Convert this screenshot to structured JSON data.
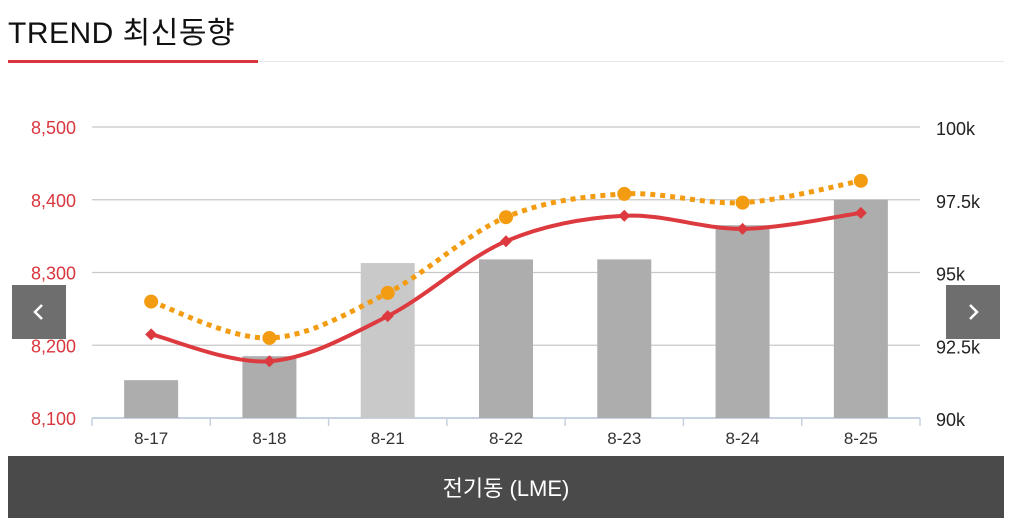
{
  "header": {
    "title": "TREND 최신동향"
  },
  "nav": {
    "prev_icon": "chevron-left-icon",
    "next_icon": "chevron-right-icon"
  },
  "footer": {
    "label": "전기동 (LME)"
  },
  "colors": {
    "accent": "#d9363e",
    "line_red": "#dc3a3f",
    "line_orange": "#f39c12",
    "bar": "#adadad",
    "bar_light": "#c9c9c9",
    "footer_bg": "#4a4a4a"
  },
  "chart_data": {
    "type": "bar",
    "categories": [
      "8-17",
      "8-18",
      "8-21",
      "8-22",
      "8-23",
      "8-24",
      "8-25"
    ],
    "left_axis": {
      "ticks": [
        "8,100",
        "8,200",
        "8,300",
        "8,400",
        "8,500"
      ],
      "range": [
        8100,
        8500
      ]
    },
    "right_axis": {
      "ticks": [
        "90k",
        "92.5k",
        "95k",
        "97.5k",
        "100k"
      ],
      "range": [
        90000,
        100000
      ]
    },
    "grid": true,
    "bars": {
      "axis": "left",
      "values": [
        8152,
        8185,
        8313,
        8318,
        8318,
        8365,
        8400
      ]
    },
    "series": [
      {
        "type": "line",
        "axis": "left",
        "style": "solid",
        "marker": "diamond",
        "color": "#dc3a3f",
        "values": [
          8215,
          8178,
          8240,
          8343,
          8378,
          8360,
          8382
        ]
      },
      {
        "type": "line",
        "axis": "right",
        "style": "dotted",
        "marker": "circle",
        "color": "#f39c12",
        "values": [
          94000,
          92750,
          94300,
          96900,
          97700,
          97400,
          98150
        ]
      }
    ]
  }
}
